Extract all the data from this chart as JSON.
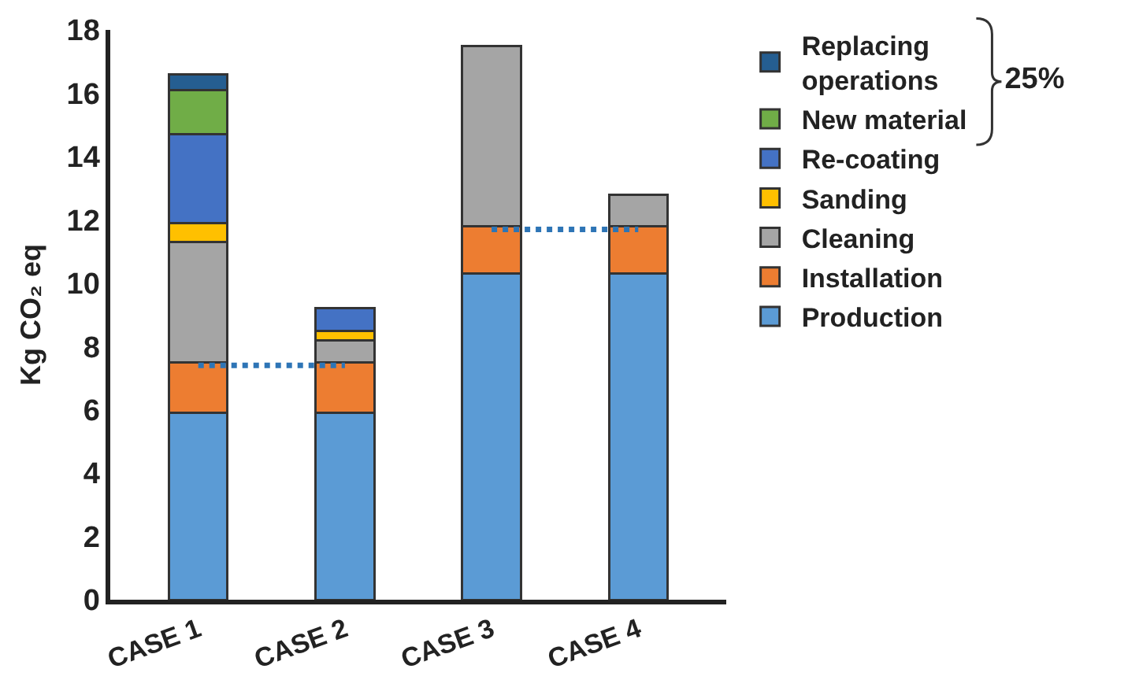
{
  "chart_data": {
    "type": "bar",
    "stacked": true,
    "ylabel": "Kg CO₂ eq",
    "categories": [
      "CASE 1",
      "CASE 2",
      "CASE 3",
      "CASE 4"
    ],
    "ylim": [
      0,
      18
    ],
    "yticks": [
      0,
      2,
      4,
      6,
      8,
      10,
      12,
      14,
      16,
      18
    ],
    "grid": false,
    "legend": "right",
    "series": [
      {
        "name": "Production",
        "color": "#5b9bd5",
        "values": [
          5.9,
          5.9,
          10.3,
          10.3
        ]
      },
      {
        "name": "Installation",
        "color": "#ed7d31",
        "values": [
          1.6,
          1.6,
          1.5,
          1.5
        ]
      },
      {
        "name": "Cleaning",
        "color": "#a5a5a5",
        "values": [
          3.8,
          0.7,
          5.7,
          1.0
        ]
      },
      {
        "name": "Sanding",
        "color": "#ffc000",
        "values": [
          0.6,
          0.3,
          null,
          null
        ]
      },
      {
        "name": "Re-coating",
        "color": "#4472c4",
        "values": [
          2.8,
          0.7,
          null,
          null
        ]
      },
      {
        "name": "New material",
        "color": "#70ad47",
        "values": [
          1.4,
          null,
          null,
          null
        ]
      },
      {
        "name": "Replacing operations",
        "color": "#255e91",
        "values": [
          0.5,
          null,
          null,
          null
        ]
      },
      {
        "type": "line",
        "color": "#2e75b6",
        "line_style": "dotted",
        "marker": "none",
        "values": [
          7.4,
          7.4,
          null,
          null
        ]
      },
      {
        "type": "line",
        "color": "#2e75b6",
        "line_style": "dotted",
        "marker": "none",
        "values": [
          null,
          null,
          11.7,
          11.7
        ]
      }
    ],
    "annotations": [
      "25%"
    ]
  }
}
